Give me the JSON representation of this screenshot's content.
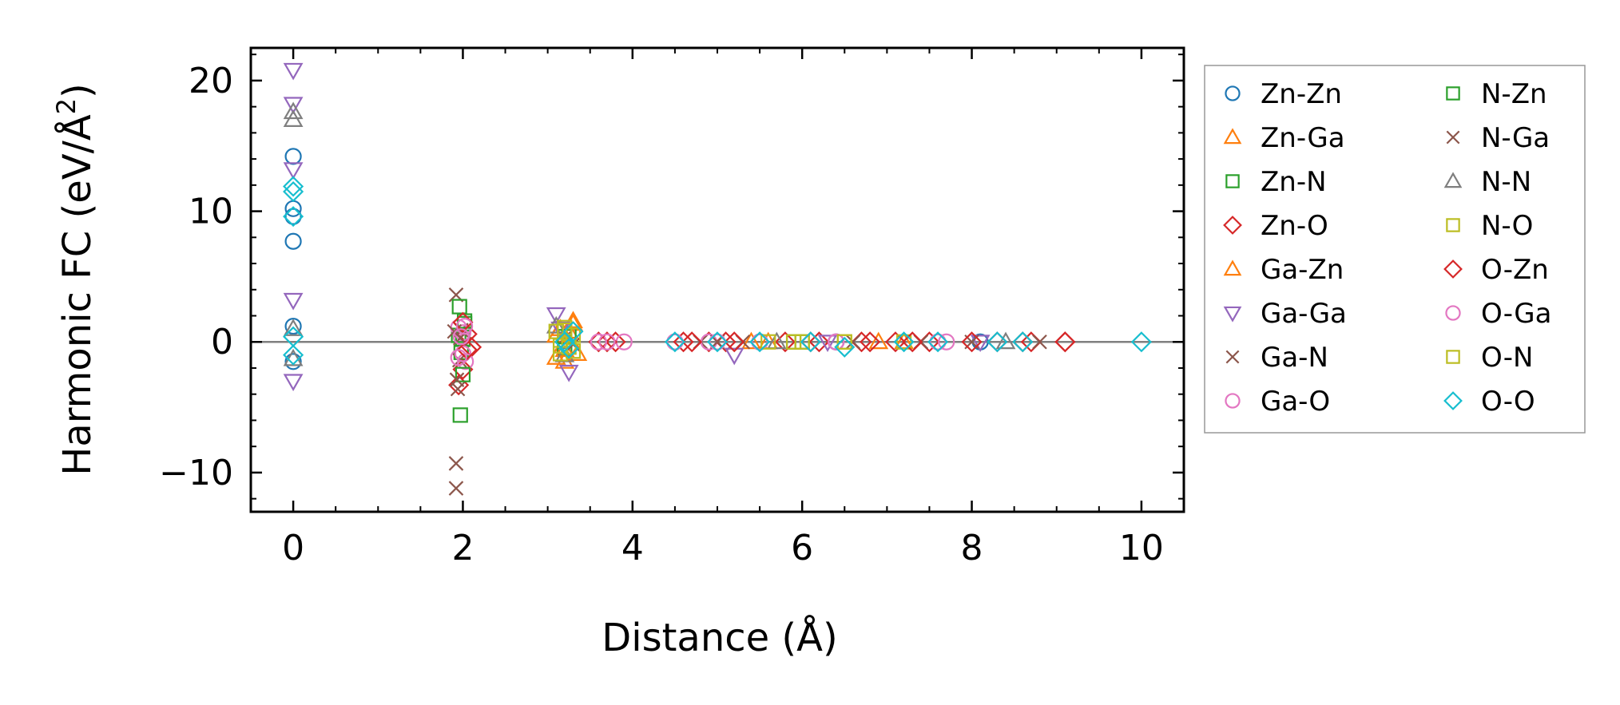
{
  "chart_data": {
    "type": "scatter",
    "title": "",
    "xlabel": "Distance (Å)",
    "ylabel_main": "Harmonic FC (eV/Å",
    "ylabel_sup": "2",
    "ylabel_end": ")",
    "xlim": [
      -0.5,
      10.5
    ],
    "ylim": [
      -13,
      22.5
    ],
    "xticks": [
      0,
      2,
      4,
      6,
      8,
      10
    ],
    "xtick_labels": [
      "0",
      "2",
      "4",
      "6",
      "8",
      "10"
    ],
    "yticks": [
      -10,
      0,
      10,
      20
    ],
    "ytick_labels": [
      "−10",
      "0",
      "10",
      "20"
    ],
    "grid": false,
    "zero_line": true,
    "legend_position": "outside-right",
    "series": [
      {
        "name": "Zn-Zn",
        "marker": "circle",
        "color": "#1f77b4",
        "x": [
          0,
          0,
          0,
          0,
          0,
          0,
          3.2,
          4.5,
          5.5,
          6.4,
          8.1
        ],
        "y": [
          14.2,
          10.2,
          9.6,
          7.7,
          1.2,
          -1.5,
          0.1,
          0,
          0,
          0,
          0
        ]
      },
      {
        "name": "Zn-Ga",
        "marker": "triangle-up",
        "color": "#ff7f0e",
        "x": [
          3.1,
          3.15,
          3.2,
          3.25,
          3.3,
          3.35,
          5.6,
          7.2
        ],
        "y": [
          -1.2,
          1.0,
          -1.5,
          0.8,
          1.4,
          -0.9,
          0,
          0
        ]
      },
      {
        "name": "Zn-N",
        "marker": "square",
        "color": "#2ca02c",
        "x": [
          1.95,
          1.98,
          2.0,
          2.02,
          3.2,
          3.25,
          5.9
        ],
        "y": [
          0.5,
          -0.8,
          0.2,
          1.4,
          -0.5,
          0.6,
          0
        ]
      },
      {
        "name": "Zn-O",
        "marker": "diamond",
        "color": "#d62728",
        "x": [
          1.95,
          2.0,
          2.05,
          2.1,
          3.6,
          3.8,
          4.6,
          4.9,
          5.1,
          5.8,
          6.2,
          6.7,
          7.1,
          7.5,
          8.3,
          8.7,
          9.1
        ],
        "y": [
          -3.3,
          -2.1,
          0.6,
          -0.4,
          0,
          0,
          0,
          0,
          0,
          0,
          0,
          0,
          0,
          0,
          0,
          0,
          0
        ]
      },
      {
        "name": "Ga-Zn",
        "marker": "triangle-up",
        "color": "#ff7f0e",
        "x": [
          3.1,
          3.2,
          3.3,
          5.4,
          6.9
        ],
        "y": [
          0.5,
          -0.6,
          1.6,
          0,
          0
        ]
      },
      {
        "name": "Ga-Ga",
        "marker": "triangle-down",
        "color": "#9467bd",
        "x": [
          0,
          0,
          0,
          0,
          0,
          3.1,
          3.15,
          3.25,
          5.2,
          6.3,
          8.1
        ],
        "y": [
          20.8,
          18.2,
          13.2,
          3.2,
          -3.0,
          2.1,
          1.0,
          -2.3,
          -1.0,
          0,
          0
        ]
      },
      {
        "name": "Ga-N",
        "marker": "x",
        "color": "#8c564b",
        "x": [
          1.92,
          1.92,
          1.92,
          1.94,
          1.96,
          1.98,
          3.2,
          4.8,
          5.3,
          6.6,
          8.0,
          8.8
        ],
        "y": [
          3.6,
          -9.3,
          -11.2,
          -3.6,
          -1.4,
          0.9,
          0.3,
          0,
          0,
          0,
          0,
          0
        ]
      },
      {
        "name": "Ga-O",
        "marker": "circle",
        "color": "#e377c2",
        "x": [
          1.95,
          2.0,
          2.0,
          2.03,
          3.6,
          3.9,
          4.5,
          4.9,
          5.5,
          6.4,
          7.6
        ],
        "y": [
          1.1,
          0.7,
          -0.9,
          -1.5,
          0,
          0,
          0,
          0,
          0,
          0,
          0
        ]
      },
      {
        "name": "N-Zn",
        "marker": "square",
        "color": "#2ca02c",
        "x": [
          1.96,
          1.97,
          2.0,
          2.02,
          3.2,
          6.0
        ],
        "y": [
          2.7,
          -5.6,
          -2.5,
          1.6,
          0.4,
          0
        ]
      },
      {
        "name": "N-Ga",
        "marker": "x",
        "color": "#8c564b",
        "x": [
          1.9,
          1.93,
          1.97,
          3.3,
          5.0,
          7.4
        ],
        "y": [
          0.8,
          -2.9,
          0.3,
          -0.2,
          0,
          0
        ]
      },
      {
        "name": "N-N",
        "marker": "triangle-up",
        "color": "#7f7f7f",
        "x": [
          0,
          0,
          0,
          0,
          3.1,
          3.2,
          5.7,
          8.4
        ],
        "y": [
          17.6,
          17.0,
          1.0,
          -1.3,
          1.2,
          -1.0,
          0,
          0
        ]
      },
      {
        "name": "N-O",
        "marker": "square",
        "color": "#bcbd22",
        "x": [
          3.1,
          3.15,
          3.2,
          3.25,
          3.3,
          5.6,
          6.0,
          6.5,
          7.2
        ],
        "y": [
          0.8,
          -0.9,
          1.1,
          -0.4,
          0.5,
          0,
          0,
          0,
          0
        ]
      },
      {
        "name": "O-Zn",
        "marker": "diamond",
        "color": "#d62728",
        "x": [
          2.0,
          2.05,
          3.7,
          4.7,
          5.2,
          6.1,
          6.8,
          7.3,
          8.0,
          8.6,
          9.1
        ],
        "y": [
          1.5,
          -0.6,
          0,
          0,
          0,
          0,
          0,
          0,
          0,
          0,
          0
        ]
      },
      {
        "name": "O-Ga",
        "marker": "circle",
        "color": "#e377c2",
        "x": [
          1.95,
          1.98,
          2.02,
          3.7,
          4.5,
          5.0,
          6.4,
          7.7
        ],
        "y": [
          -1.2,
          0.4,
          1.2,
          0,
          0,
          0,
          0,
          0
        ]
      },
      {
        "name": "O-N",
        "marker": "square",
        "color": "#bcbd22",
        "x": [
          3.15,
          3.2,
          3.3,
          5.9,
          6.5
        ],
        "y": [
          -0.3,
          0.9,
          -0.7,
          0,
          0
        ]
      },
      {
        "name": "O-O",
        "marker": "diamond",
        "color": "#17becf",
        "x": [
          0,
          0,
          0,
          0,
          0,
          3.2,
          3.25,
          3.3,
          4.5,
          5.0,
          5.5,
          6.1,
          6.5,
          7.2,
          7.6,
          8.3,
          8.6,
          10.0
        ],
        "y": [
          11.9,
          11.5,
          9.6,
          0.4,
          -1.0,
          0,
          -0.5,
          0.8,
          0,
          0,
          0,
          0,
          -0.4,
          0,
          0,
          0,
          0,
          0
        ]
      }
    ]
  }
}
